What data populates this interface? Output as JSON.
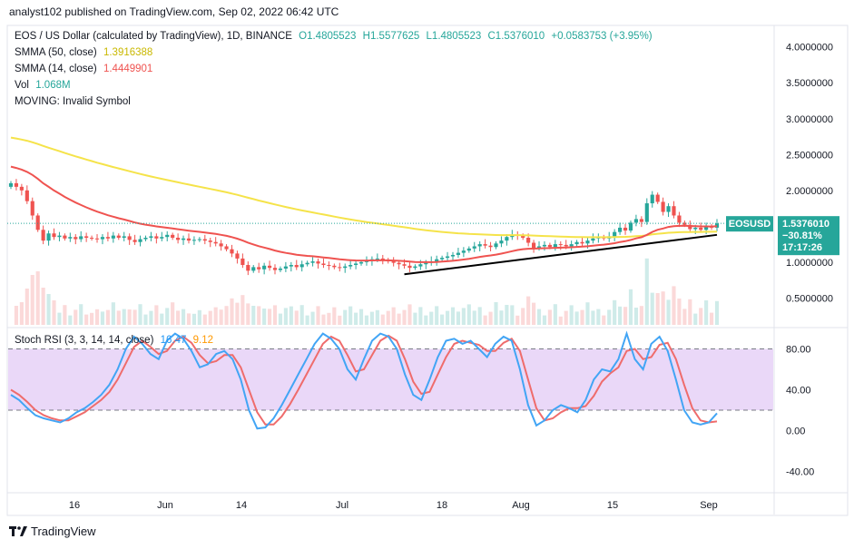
{
  "header": {
    "text": "analyst102 published on TradingView.com, Sep 02, 2022 06:42 UTC"
  },
  "legend": {
    "symbol_line": "EOS / US Dollar (calculated by TradingView), 1D, BINANCE",
    "ohlc": {
      "o": "O1.4805523",
      "h": "H1.5577625",
      "l": "L1.4805523",
      "c": "C1.5376010",
      "chg": "+0.0583753 (+3.95%)"
    },
    "sma50_label": "SMMA (50, close)",
    "sma50_value": "1.3916388",
    "sma14_label": "SMMA (14, close)",
    "sma14_value": "1.4449901",
    "vol_label": "Vol",
    "vol_value": "1.068M",
    "moving_label": "MOVING: Invalid Symbol"
  },
  "stoch_legend": {
    "label": "Stoch RSI (3, 3, 14, 14, close)",
    "k": "16.47",
    "d": "9.12"
  },
  "price_badge": {
    "symbol": "EOSUSD",
    "price": "1.5376010",
    "pct": "−30.81%",
    "countdown": "17:17:26"
  },
  "footer": {
    "brand": "TradingView"
  },
  "colors": {
    "up": "#26a69a",
    "down": "#ef5350",
    "sma50": "#f5e34a",
    "sma14": "#ef5350",
    "stoch_k": "#42a5f5",
    "stoch_d": "#ef6c6c",
    "band": "#e1c8f5"
  },
  "chart_data": [
    {
      "type": "candlestick",
      "title": "EOS / US Dollar",
      "y_axis_ticks": [
        "4.0000000",
        "3.5000000",
        "3.0000000",
        "2.5000000",
        "2.0000000",
        "1.5000000",
        "1.0000000",
        "0.5000000"
      ],
      "y_axis_tick_values": [
        4.0,
        3.5,
        3.0,
        2.5,
        2.0,
        1.5,
        1.0,
        0.5
      ],
      "ylim": [
        0.1,
        4.3
      ],
      "x_axis_ticks": [
        "16",
        "Jun",
        "14",
        "Jul",
        "18",
        "Aug",
        "15",
        "Sep"
      ],
      "closes": [
        2.1,
        2.05,
        2.0,
        1.85,
        1.65,
        1.45,
        1.3,
        1.4,
        1.35,
        1.37,
        1.33,
        1.35,
        1.32,
        1.36,
        1.34,
        1.33,
        1.32,
        1.35,
        1.33,
        1.37,
        1.34,
        1.36,
        1.31,
        1.28,
        1.32,
        1.34,
        1.36,
        1.33,
        1.35,
        1.38,
        1.34,
        1.31,
        1.33,
        1.3,
        1.31,
        1.32,
        1.3,
        1.28,
        1.26,
        1.22,
        1.18,
        1.12,
        1.05,
        0.96,
        0.88,
        0.93,
        0.9,
        0.95,
        0.92,
        0.89,
        0.91,
        0.94,
        0.96,
        0.93,
        0.97,
        0.99,
        1.01,
        0.98,
        0.96,
        0.95,
        0.93,
        0.92,
        0.94,
        0.96,
        0.98,
        1.0,
        1.02,
        1.04,
        1.05,
        1.03,
        1.01,
        0.99,
        0.97,
        0.95,
        0.92,
        0.94,
        0.97,
        0.99,
        1.01,
        1.04,
        1.06,
        1.08,
        1.1,
        1.13,
        1.16,
        1.19,
        1.22,
        1.25,
        1.23,
        1.21,
        1.26,
        1.3,
        1.35,
        1.38,
        1.37,
        1.34,
        1.27,
        1.2,
        1.22,
        1.24,
        1.21,
        1.25,
        1.24,
        1.22,
        1.25,
        1.28,
        1.26,
        1.3,
        1.33,
        1.35,
        1.33,
        1.36,
        1.42,
        1.48,
        1.44,
        1.55,
        1.6,
        1.56,
        1.82,
        1.94,
        1.84,
        1.7,
        1.78,
        1.65,
        1.55,
        1.52,
        1.46,
        1.48,
        1.45,
        1.5,
        1.48,
        1.54
      ],
      "volume_label": "Vol",
      "volume_value": "1.068M",
      "series": [
        {
          "name": "SMMA (50, close)",
          "last_value": 1.3916388
        },
        {
          "name": "SMMA (14, close)",
          "last_value": 1.4449901
        }
      ],
      "trendline": {
        "from": 0.83,
        "to": 1.38
      }
    },
    {
      "type": "line",
      "title": "Stoch RSI (3, 3, 14, 14, close)",
      "y_axis_ticks": [
        "80.00",
        "40.00",
        "0.00",
        "-40.00"
      ],
      "y_axis_tick_values": [
        80,
        40,
        0,
        -40
      ],
      "ylim": [
        -60,
        100
      ],
      "band": [
        20,
        80
      ],
      "series": [
        {
          "name": "K",
          "last_value": 16.47,
          "values": [
            35,
            30,
            22,
            15,
            12,
            10,
            8,
            12,
            18,
            22,
            28,
            35,
            45,
            60,
            80,
            92,
            85,
            75,
            70,
            88,
            95,
            90,
            78,
            62,
            65,
            75,
            78,
            70,
            50,
            20,
            2,
            3,
            12,
            25,
            40,
            55,
            70,
            85,
            95,
            90,
            80,
            60,
            50,
            70,
            88,
            95,
            92,
            80,
            55,
            35,
            30,
            50,
            72,
            88,
            90,
            85,
            88,
            80,
            72,
            85,
            92,
            88,
            60,
            25,
            5,
            10,
            20,
            25,
            22,
            18,
            30,
            50,
            60,
            58,
            70,
            95,
            70,
            60,
            85,
            92,
            78,
            50,
            20,
            8,
            6,
            8,
            17
          ]
        },
        {
          "name": "D",
          "last_value": 9.12,
          "values": [
            40,
            35,
            28,
            20,
            15,
            12,
            10,
            10,
            14,
            18,
            24,
            30,
            38,
            50,
            66,
            82,
            88,
            82,
            75,
            78,
            88,
            92,
            86,
            74,
            66,
            68,
            74,
            74,
            62,
            40,
            18,
            6,
            6,
            14,
            26,
            40,
            55,
            70,
            85,
            92,
            88,
            74,
            58,
            60,
            74,
            88,
            93,
            88,
            70,
            48,
            36,
            38,
            55,
            72,
            85,
            88,
            86,
            84,
            78,
            78,
            86,
            90,
            78,
            50,
            22,
            10,
            12,
            18,
            22,
            22,
            24,
            34,
            48,
            56,
            62,
            78,
            80,
            70,
            72,
            84,
            86,
            70,
            45,
            22,
            10,
            8,
            9
          ]
        }
      ]
    }
  ]
}
